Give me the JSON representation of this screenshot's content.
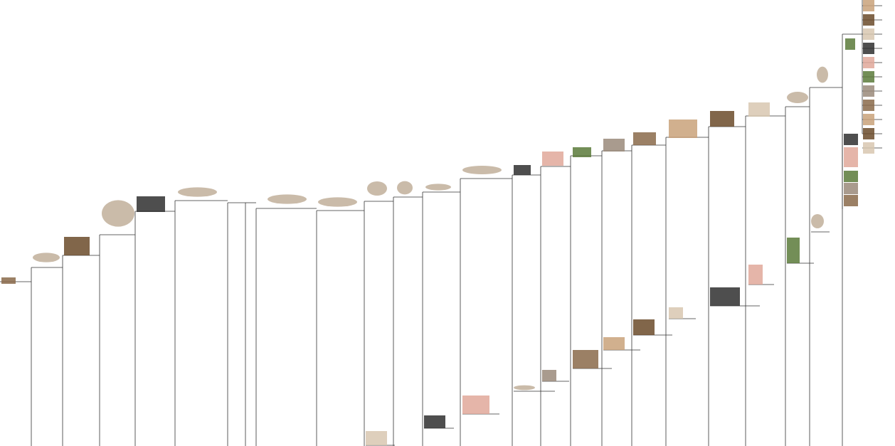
{
  "tree": {
    "colors": {
      "line": "#333333",
      "accent_label": "#2a9d8f",
      "thumb_fill": [
        "#8a6a4a",
        "#c9a27a",
        "#6b4b2a",
        "#d8c7b0",
        "#2f2f2f",
        "#e0a89a",
        "#5a7a3a",
        "#9a8a7a"
      ]
    },
    "nodes": [
      {
        "id": "n0",
        "label": "",
        "icon": "dot-thumb"
      },
      {
        "id": "n1",
        "label": "",
        "icon": "fish-sketch"
      },
      {
        "id": "n2",
        "label": "",
        "icon": "skull-photo"
      },
      {
        "id": "n3",
        "label": "",
        "icon": "lizard-skeleton"
      },
      {
        "id": "n4",
        "label": "",
        "icon": "frog-photo"
      },
      {
        "id": "n5",
        "label": "",
        "icon": "cynodont-drawing"
      },
      {
        "id": "n6",
        "label": "",
        "icon": "cynodont-drawing"
      },
      {
        "id": "n7",
        "label": "",
        "icon": "cynodont-drawing"
      },
      {
        "id": "n8",
        "label": "",
        "icon": "embryo-drawing"
      },
      {
        "id": "n9",
        "label": "",
        "icon": "embryo-drawing"
      },
      {
        "id": "n10",
        "label": "",
        "icon": "mammal-drawing"
      },
      {
        "id": "n11",
        "label": "",
        "icon": "mammal-drawing"
      },
      {
        "id": "n12",
        "label": "",
        "icon": "mammal-photo"
      },
      {
        "id": "n13",
        "label": "",
        "icon": "primate-photo"
      },
      {
        "id": "n14",
        "label": "",
        "icon": "flag-thumb"
      },
      {
        "id": "n15",
        "label": "",
        "icon": "primate-photo"
      },
      {
        "id": "n16",
        "label": "",
        "icon": "primate-photo"
      },
      {
        "id": "n17",
        "label": "",
        "icon": "primate-photo"
      },
      {
        "id": "n18",
        "label": "",
        "icon": "primate-photo"
      },
      {
        "id": "n19",
        "label": "",
        "icon": "primate-photo"
      },
      {
        "id": "n20",
        "label": "",
        "icon": "ape-skeleton"
      },
      {
        "id": "n21",
        "label": "",
        "icon": "human-skeleton"
      },
      {
        "id": "n22",
        "label": "",
        "icon": "skull-photo"
      }
    ],
    "side_leaves": [
      {
        "label": "",
        "icon": "mammal-photo"
      },
      {
        "label": "",
        "icon": "mammal-photo"
      },
      {
        "label": "",
        "icon": "mammal-photo"
      },
      {
        "label": "",
        "icon": "mammal-drawing"
      },
      {
        "label": "",
        "icon": "mammal-photo"
      },
      {
        "label": "",
        "icon": "primate-photo"
      },
      {
        "label": "",
        "icon": "primate-photo"
      },
      {
        "label": "",
        "icon": "primate-photo"
      },
      {
        "label": "",
        "icon": "primate-photo"
      },
      {
        "label": "",
        "icon": "primate-photo"
      },
      {
        "label": "",
        "icon": "primate-photo"
      },
      {
        "label": "",
        "icon": "primate-photo"
      },
      {
        "label": "",
        "icon": "ape-skeleton"
      }
    ],
    "top_right_column": [
      {
        "label": "",
        "icon": "skull-photo"
      },
      {
        "label": "",
        "icon": "skull-photo"
      },
      {
        "label": "",
        "icon": "skull-photo"
      },
      {
        "label": "",
        "icon": "skull-photo"
      },
      {
        "label": "",
        "icon": "skull-photo"
      },
      {
        "label": "",
        "icon": "skull-photo"
      },
      {
        "label": "",
        "icon": "skull-photo"
      },
      {
        "label": "",
        "icon": "skull-photo"
      },
      {
        "label": "",
        "icon": "skull-photo"
      },
      {
        "label": "",
        "icon": "skull-photo"
      },
      {
        "label": "",
        "icon": "skull-photo"
      }
    ],
    "mid_right_column": [
      {
        "label": "",
        "icon": "primate-photo"
      },
      {
        "label": "",
        "icon": "primate-photo"
      },
      {
        "label": "",
        "icon": "skull-photo"
      },
      {
        "label": "",
        "icon": "skull-photo"
      },
      {
        "label": "",
        "icon": "skull-photo"
      }
    ]
  }
}
